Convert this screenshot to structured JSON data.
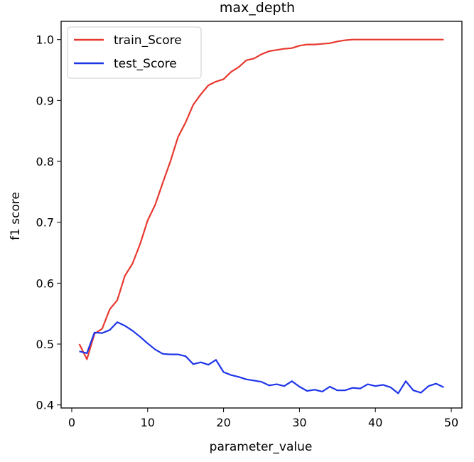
{
  "chart_data": {
    "type": "line",
    "title": "max_depth",
    "xlabel": "parameter_value",
    "ylabel": "f1 score",
    "xlim": [
      -1.4,
      51.4
    ],
    "ylim": [
      0.395,
      1.03
    ],
    "xticks": [
      0,
      10,
      20,
      30,
      40,
      50
    ],
    "xtick_labels": [
      "0",
      "10",
      "20",
      "30",
      "40",
      "50"
    ],
    "yticks": [
      0.4,
      0.5,
      0.6,
      0.7,
      0.8,
      0.9,
      1.0
    ],
    "ytick_labels": [
      "0.4",
      "0.5",
      "0.6",
      "0.7",
      "0.8",
      "0.9",
      "1.0"
    ],
    "grid": false,
    "legend_position": "top-left",
    "x": [
      1,
      2,
      3,
      4,
      5,
      6,
      7,
      8,
      9,
      10,
      11,
      12,
      13,
      14,
      15,
      16,
      17,
      18,
      19,
      20,
      21,
      22,
      23,
      24,
      25,
      26,
      27,
      28,
      29,
      30,
      31,
      32,
      33,
      34,
      35,
      36,
      37,
      38,
      39,
      40,
      41,
      42,
      43,
      44,
      45,
      46,
      47,
      48,
      49
    ],
    "series": [
      {
        "name": "train_Score",
        "color": "#e8392f",
        "values": [
          0.5,
          0.475,
          0.517,
          0.525,
          0.557,
          0.572,
          0.612,
          0.632,
          0.664,
          0.703,
          0.729,
          0.765,
          0.8,
          0.84,
          0.864,
          0.893,
          0.91,
          0.925,
          0.931,
          0.935,
          0.947,
          0.955,
          0.966,
          0.969,
          0.976,
          0.981,
          0.983,
          0.985,
          0.986,
          0.99,
          0.992,
          0.992,
          0.993,
          0.994,
          0.997,
          0.999,
          1.0,
          1.0,
          1.0,
          1.0,
          1.0,
          1.0,
          1.0,
          1.0,
          1.0,
          1.0,
          1.0,
          1.0,
          1.0
        ]
      },
      {
        "name": "test_Score",
        "color": "#1f35e8",
        "values": [
          0.488,
          0.485,
          0.519,
          0.518,
          0.523,
          0.536,
          0.53,
          0.522,
          0.512,
          0.501,
          0.491,
          0.484,
          0.483,
          0.483,
          0.48,
          0.467,
          0.47,
          0.466,
          0.474,
          0.454,
          0.449,
          0.446,
          0.442,
          0.44,
          0.438,
          0.432,
          0.434,
          0.431,
          0.439,
          0.43,
          0.423,
          0.425,
          0.422,
          0.43,
          0.424,
          0.424,
          0.428,
          0.427,
          0.434,
          0.431,
          0.433,
          0.429,
          0.419,
          0.439,
          0.424,
          0.42,
          0.431,
          0.435,
          0.429
        ]
      }
    ]
  }
}
